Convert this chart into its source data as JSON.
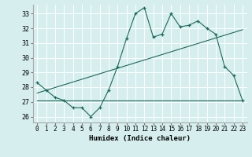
{
  "title": "",
  "xlabel": "Humidex (Indice chaleur)",
  "ylabel": "",
  "background_color": "#d6eeee",
  "grid_color": "#ffffff",
  "line_color": "#1a6b5a",
  "xlim": [
    -0.5,
    23.5
  ],
  "ylim": [
    25.6,
    33.6
  ],
  "yticks": [
    26,
    27,
    28,
    29,
    30,
    31,
    32,
    33
  ],
  "xticks": [
    0,
    1,
    2,
    3,
    4,
    5,
    6,
    7,
    8,
    9,
    10,
    11,
    12,
    13,
    14,
    15,
    16,
    17,
    18,
    19,
    20,
    21,
    22,
    23
  ],
  "main_line": [
    28.3,
    27.8,
    27.3,
    27.1,
    26.6,
    26.6,
    26.0,
    26.6,
    27.8,
    29.4,
    31.3,
    33.0,
    33.4,
    31.4,
    31.6,
    33.0,
    32.1,
    32.2,
    32.5,
    32.0,
    31.6,
    29.4,
    28.8,
    27.1
  ],
  "min_line_y": 27.1,
  "trend_line_x": [
    0,
    23
  ],
  "trend_line_y": [
    27.6,
    31.9
  ],
  "figsize": [
    3.2,
    2.0
  ],
  "dpi": 100
}
